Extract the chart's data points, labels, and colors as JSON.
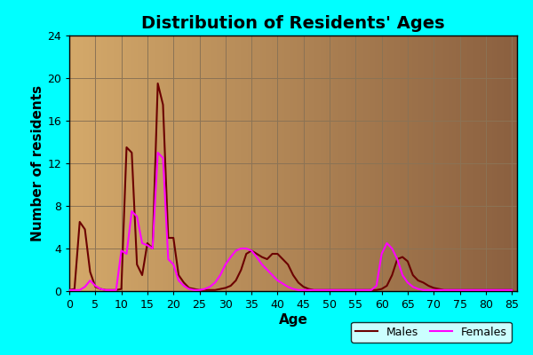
{
  "title": "Distribution of Residents' Ages",
  "xlabel": "Age",
  "ylabel": "Number of residents",
  "background_color": "#00FFFF",
  "plot_bg_color_left": "#D4A96A",
  "plot_bg_color_right": "#8B6040",
  "grid_color": "#8B7355",
  "male_color": "#6B0000",
  "female_color": "#FF00FF",
  "xlim": [
    0,
    86
  ],
  "ylim": [
    0,
    24
  ],
  "xticks": [
    0,
    5,
    10,
    15,
    20,
    25,
    30,
    35,
    40,
    45,
    50,
    55,
    60,
    65,
    70,
    75,
    80,
    85
  ],
  "yticks": [
    0,
    4,
    8,
    12,
    16,
    20,
    24
  ],
  "males": [
    0.1,
    0.2,
    6.5,
    5.8,
    1.8,
    0.4,
    0.2,
    0.1,
    0.1,
    0.1,
    0.2,
    13.5,
    13.0,
    2.5,
    1.5,
    4.5,
    4.0,
    19.5,
    17.5,
    5.0,
    5.0,
    1.5,
    0.8,
    0.3,
    0.2,
    0.1,
    0.1,
    0.1,
    0.1,
    0.2,
    0.3,
    0.5,
    1.0,
    2.0,
    3.5,
    3.8,
    3.5,
    3.2,
    3.0,
    3.5,
    3.5,
    3.0,
    2.5,
    1.5,
    0.8,
    0.4,
    0.2,
    0.1,
    0.1,
    0.1,
    0.1,
    0.1,
    0.1,
    0.1,
    0.1,
    0.1,
    0.1,
    0.1,
    0.1,
    0.1,
    0.2,
    0.5,
    1.5,
    3.0,
    3.2,
    2.8,
    1.5,
    1.0,
    0.8,
    0.5,
    0.3,
    0.2,
    0.1,
    0.1,
    0.1,
    0.1,
    0.1,
    0.1,
    0.1,
    0.1,
    0.1,
    0.1,
    0.1,
    0.1,
    0.1,
    0.1
  ],
  "females": [
    0.1,
    0.1,
    0.1,
    0.4,
    1.0,
    0.5,
    0.2,
    0.1,
    0.1,
    0.1,
    3.8,
    3.5,
    7.5,
    7.0,
    4.5,
    4.3,
    4.0,
    13.0,
    12.5,
    3.0,
    2.5,
    1.0,
    0.5,
    0.2,
    0.1,
    0.1,
    0.2,
    0.4,
    0.8,
    1.5,
    2.5,
    3.2,
    3.8,
    4.0,
    4.0,
    3.8,
    3.2,
    2.5,
    2.0,
    1.5,
    1.0,
    0.7,
    0.4,
    0.2,
    0.1,
    0.1,
    0.1,
    0.1,
    0.1,
    0.1,
    0.1,
    0.1,
    0.1,
    0.1,
    0.1,
    0.1,
    0.1,
    0.1,
    0.1,
    0.5,
    3.5,
    4.5,
    4.0,
    3.0,
    1.5,
    0.8,
    0.4,
    0.2,
    0.1,
    0.1,
    0.1,
    0.1,
    0.1,
    0.1,
    0.1,
    0.1,
    0.1,
    0.1,
    0.1,
    0.1,
    0.1,
    0.1,
    0.1,
    0.1,
    0.1,
    0.1
  ],
  "title_fontsize": 14,
  "label_fontsize": 11,
  "tick_fontsize": 9,
  "legend_fontsize": 9
}
